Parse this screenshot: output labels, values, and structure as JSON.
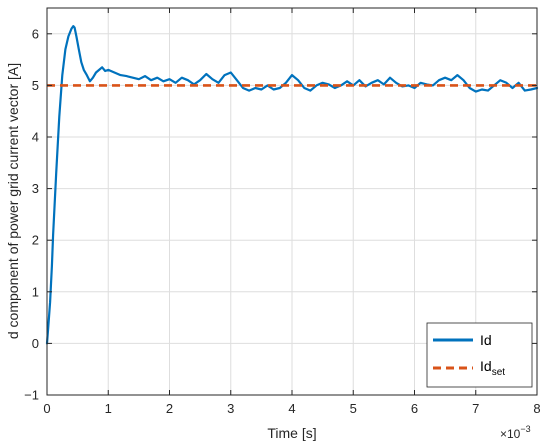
{
  "chart_data": {
    "type": "line",
    "xlabel": "Time [s]",
    "ylabel": "d component of power grid current vector [A]",
    "x_exponent": {
      "base": "×10",
      "power": "−3"
    },
    "xlim": [
      0,
      8
    ],
    "ylim": [
      -1,
      6.5
    ],
    "xticks": [
      0,
      1,
      2,
      3,
      4,
      5,
      6,
      7,
      8
    ],
    "yticks": [
      -1,
      0,
      1,
      2,
      3,
      4,
      5,
      6
    ],
    "ytick_labels": [
      "−1",
      "0",
      "1",
      "2",
      "3",
      "4",
      "5",
      "6"
    ],
    "grid": true,
    "legend_position": "bottom-right",
    "colors": {
      "id": "#0072BD",
      "id_set": "#D95319",
      "grid": "#dedede",
      "axes": "#262626"
    },
    "series": [
      {
        "key": "id",
        "name": "Id",
        "style": "solid",
        "x": [
          0,
          0.02,
          0.05,
          0.08,
          0.1,
          0.15,
          0.2,
          0.25,
          0.3,
          0.35,
          0.4,
          0.43,
          0.45,
          0.48,
          0.52,
          0.56,
          0.6,
          0.65,
          0.7,
          0.75,
          0.8,
          0.85,
          0.9,
          0.95,
          1.0,
          1.1,
          1.2,
          1.3,
          1.4,
          1.5,
          1.6,
          1.7,
          1.8,
          1.9,
          2.0,
          2.1,
          2.2,
          2.3,
          2.4,
          2.5,
          2.6,
          2.7,
          2.8,
          2.9,
          3.0,
          3.1,
          3.2,
          3.3,
          3.4,
          3.5,
          3.6,
          3.7,
          3.8,
          3.9,
          4.0,
          4.1,
          4.2,
          4.3,
          4.4,
          4.5,
          4.6,
          4.7,
          4.8,
          4.9,
          5.0,
          5.1,
          5.2,
          5.3,
          5.4,
          5.5,
          5.6,
          5.7,
          5.8,
          5.9,
          6.0,
          6.1,
          6.2,
          6.3,
          6.4,
          6.5,
          6.6,
          6.7,
          6.8,
          6.9,
          7.0,
          7.1,
          7.2,
          7.3,
          7.4,
          7.5,
          7.6,
          7.7,
          7.8,
          7.9,
          8.0
        ],
        "y": [
          0,
          0.3,
          0.8,
          1.5,
          2.1,
          3.3,
          4.4,
          5.2,
          5.7,
          5.95,
          6.1,
          6.15,
          6.12,
          5.95,
          5.7,
          5.45,
          5.3,
          5.2,
          5.08,
          5.15,
          5.25,
          5.3,
          5.35,
          5.28,
          5.3,
          5.25,
          5.2,
          5.18,
          5.15,
          5.12,
          5.18,
          5.1,
          5.15,
          5.08,
          5.12,
          5.05,
          5.15,
          5.1,
          5.02,
          5.1,
          5.22,
          5.12,
          5.05,
          5.2,
          5.25,
          5.1,
          4.95,
          4.9,
          4.95,
          4.92,
          5.0,
          4.92,
          4.95,
          5.05,
          5.2,
          5.1,
          4.95,
          4.9,
          5.0,
          5.05,
          5.02,
          4.95,
          5.0,
          5.08,
          5.0,
          5.1,
          4.98,
          5.05,
          5.1,
          5.02,
          5.15,
          5.05,
          4.98,
          5.0,
          4.95,
          5.05,
          5.02,
          5.0,
          5.1,
          5.15,
          5.1,
          5.2,
          5.1,
          4.95,
          4.88,
          4.92,
          4.9,
          5.0,
          5.1,
          5.05,
          4.95,
          5.05,
          4.9,
          4.92,
          4.95
        ]
      },
      {
        "key": "id_set",
        "name": "Id",
        "name_sub": "set",
        "style": "dashed",
        "x": [
          0,
          8
        ],
        "y": [
          5,
          5
        ]
      }
    ]
  }
}
